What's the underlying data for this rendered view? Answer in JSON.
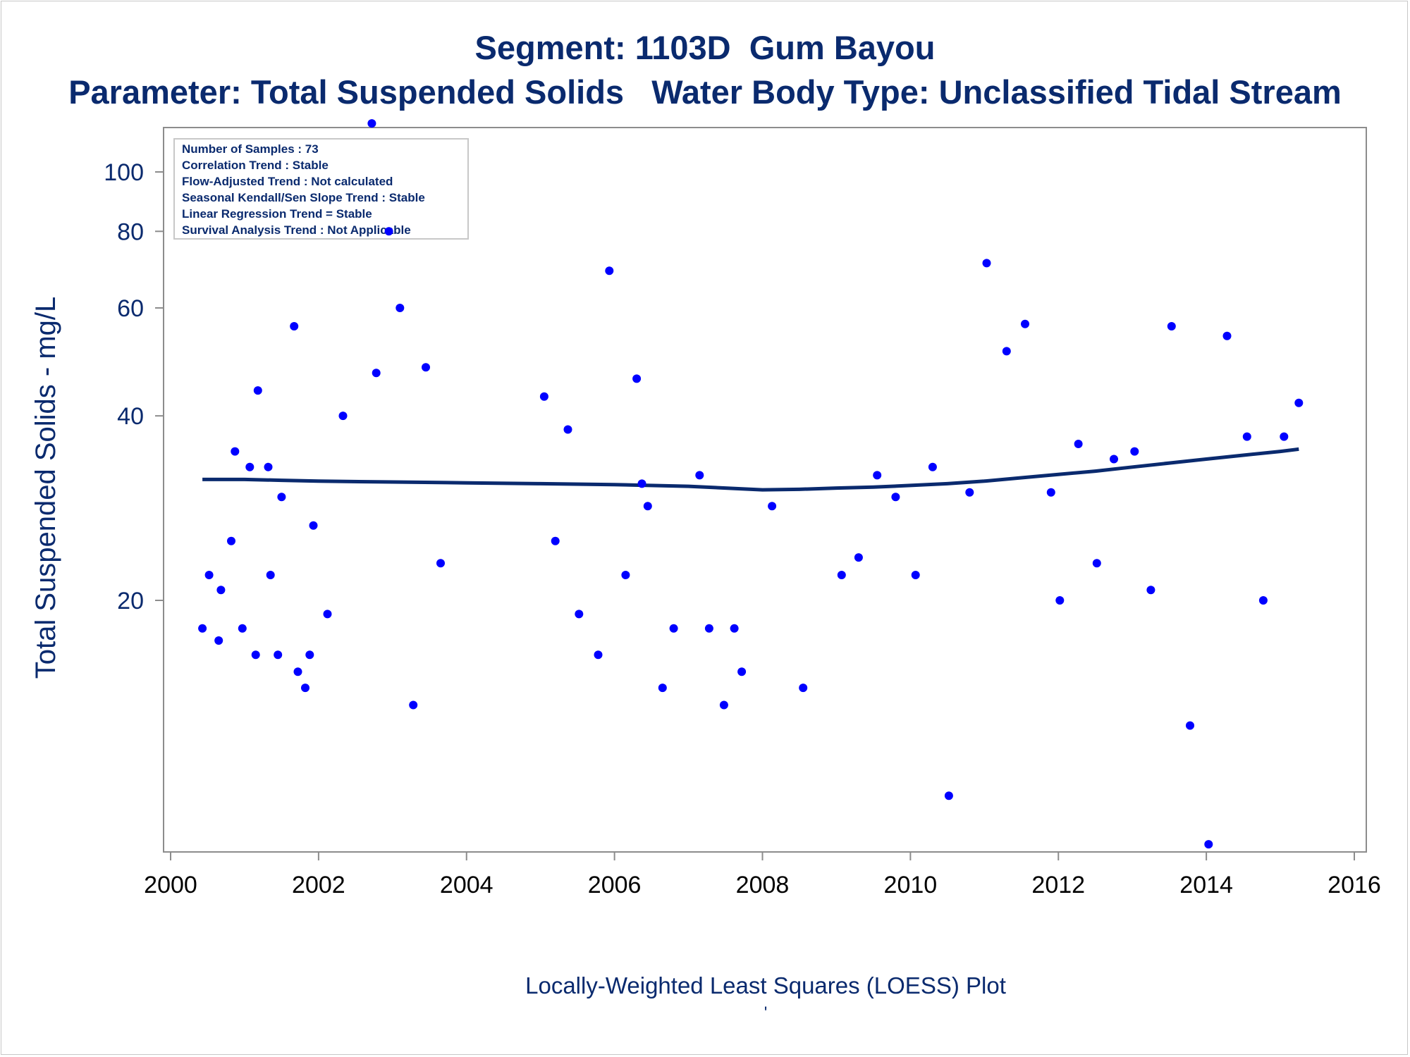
{
  "header": {
    "title": "Segment: 1103D  Gum Bayou",
    "subtitle": "Parameter: Total Suspended Solids   Water Body Type: Unclassified Tidal Stream"
  },
  "footer": {
    "caption": "Locally-Weighted Least Squares (LOESS) Plot",
    "mark": "'"
  },
  "colors": {
    "text": "#0a2a6e",
    "points": "#0000ff",
    "loess": "#0a2a6e",
    "axis": "#8c8c8c"
  },
  "chart_data": {
    "type": "scatter",
    "ylabel": "Total Suspended Solids - mg/L",
    "y_scale": "log",
    "xlim": [
      2000,
      2016
    ],
    "ylim": [
      8,
      120
    ],
    "x_ticks": [
      2000,
      2002,
      2004,
      2006,
      2008,
      2010,
      2012,
      2014,
      2016
    ],
    "y_ticks": [
      20,
      40,
      60,
      80,
      100
    ],
    "grid": false,
    "info_box": [
      "Number of Samples : 73",
      "Correlation Trend : Stable",
      "Flow-Adjusted Trend : Not calculated",
      "Seasonal Kendall/Sen Slope Trend : Stable",
      "Linear Regression Trend = Stable",
      "Survival Analysis Trend : Not Applicable"
    ],
    "series": [
      {
        "type": "scatter",
        "points": [
          [
            2000.43,
            18.0
          ],
          [
            2000.52,
            22.0
          ],
          [
            2000.65,
            17.2
          ],
          [
            2000.68,
            20.8
          ],
          [
            2000.82,
            25.0
          ],
          [
            2000.87,
            35.0
          ],
          [
            2000.97,
            18.0
          ],
          [
            2001.07,
            33.0
          ],
          [
            2001.15,
            16.3
          ],
          [
            2001.18,
            44.0
          ],
          [
            2001.32,
            33.0
          ],
          [
            2001.35,
            22.0
          ],
          [
            2001.45,
            16.3
          ],
          [
            2001.5,
            29.5
          ],
          [
            2001.67,
            56.0
          ],
          [
            2001.72,
            15.3
          ],
          [
            2001.82,
            14.4
          ],
          [
            2001.88,
            16.3
          ],
          [
            2001.93,
            26.5
          ],
          [
            2002.12,
            19.0
          ],
          [
            2002.33,
            40.0
          ],
          [
            2002.72,
            120.0
          ],
          [
            2002.78,
            47.0
          ],
          [
            2002.95,
            80.0
          ],
          [
            2003.1,
            60.0
          ],
          [
            2003.28,
            13.5
          ],
          [
            2003.45,
            48.0
          ],
          [
            2003.65,
            23.0
          ],
          [
            2005.05,
            43.0
          ],
          [
            2005.2,
            25.0
          ],
          [
            2005.37,
            38.0
          ],
          [
            2005.52,
            19.0
          ],
          [
            2005.78,
            16.3
          ],
          [
            2005.93,
            69.0
          ],
          [
            2006.15,
            22.0
          ],
          [
            2006.3,
            46.0
          ],
          [
            2006.37,
            31.0
          ],
          [
            2006.45,
            28.5
          ],
          [
            2006.65,
            14.4
          ],
          [
            2006.8,
            18.0
          ],
          [
            2007.15,
            32.0
          ],
          [
            2007.28,
            18.0
          ],
          [
            2007.48,
            13.5
          ],
          [
            2007.62,
            18.0
          ],
          [
            2007.72,
            15.3
          ],
          [
            2008.13,
            28.5
          ],
          [
            2008.55,
            14.4
          ],
          [
            2009.07,
            22.0
          ],
          [
            2009.3,
            23.5
          ],
          [
            2009.55,
            32.0
          ],
          [
            2009.8,
            29.5
          ],
          [
            2010.07,
            22.0
          ],
          [
            2010.3,
            33.0
          ],
          [
            2010.52,
            9.6
          ],
          [
            2010.8,
            30.0
          ],
          [
            2011.03,
            71.0
          ],
          [
            2011.3,
            51.0
          ],
          [
            2011.55,
            56.5
          ],
          [
            2011.9,
            30.0
          ],
          [
            2012.02,
            20.0
          ],
          [
            2012.27,
            36.0
          ],
          [
            2012.52,
            23.0
          ],
          [
            2012.75,
            34.0
          ],
          [
            2013.03,
            35.0
          ],
          [
            2013.25,
            20.8
          ],
          [
            2013.53,
            56.0
          ],
          [
            2013.78,
            12.5
          ],
          [
            2014.03,
            8.0
          ],
          [
            2014.28,
            54.0
          ],
          [
            2014.55,
            37.0
          ],
          [
            2014.77,
            20.0
          ],
          [
            2015.05,
            37.0
          ],
          [
            2015.25,
            42.0
          ]
        ]
      },
      {
        "type": "line",
        "x": [
          2000.43,
          2001.0,
          2001.5,
          2002.0,
          2003.0,
          2004.0,
          2005.0,
          2006.0,
          2007.0,
          2007.5,
          2008.0,
          2008.5,
          2009.0,
          2009.5,
          2010.0,
          2010.5,
          2011.0,
          2011.5,
          2012.0,
          2012.5,
          2013.0,
          2013.5,
          2014.0,
          2014.5,
          2015.0,
          2015.25
        ],
        "y": [
          31.5,
          31.5,
          31.4,
          31.3,
          31.2,
          31.1,
          31.0,
          30.9,
          30.7,
          30.5,
          30.3,
          30.35,
          30.5,
          30.6,
          30.8,
          31.0,
          31.3,
          31.7,
          32.1,
          32.5,
          33.0,
          33.5,
          34.0,
          34.5,
          35.0,
          35.3
        ]
      }
    ]
  }
}
